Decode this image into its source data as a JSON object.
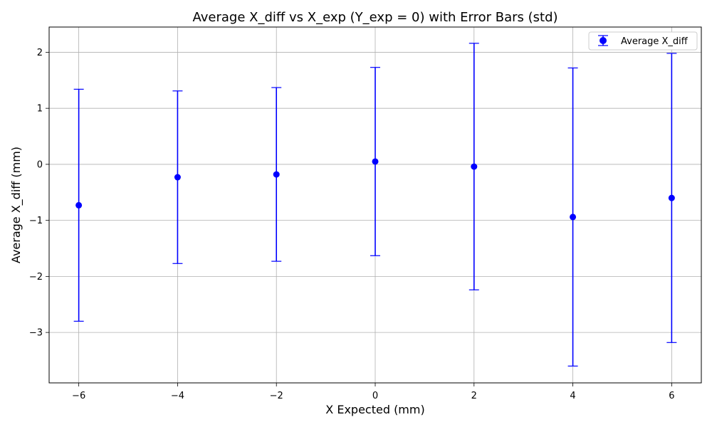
{
  "chart_data": {
    "type": "scatter",
    "title": "Average X_diff vs X_exp (Y_exp = 0) with Error Bars (std)",
    "xlabel": "X Expected (mm)",
    "ylabel": "Average X_diff (mm)",
    "xlim": [
      -6.6,
      6.6
    ],
    "ylim": [
      -3.9,
      2.45
    ],
    "xticks": [
      -6,
      -4,
      -2,
      0,
      2,
      4,
      6
    ],
    "xtick_labels": [
      "−6",
      "−4",
      "−2",
      "0",
      "2",
      "4",
      "6"
    ],
    "yticks": [
      2,
      1,
      0,
      -1,
      -2,
      -3
    ],
    "ytick_labels": [
      "2",
      "1",
      "0",
      "−1",
      "−2",
      "−3"
    ],
    "grid": true,
    "legend_position": "upper right",
    "color": "#0000ff",
    "series": [
      {
        "name": "Average X_diff",
        "x": [
          -6,
          -4,
          -2,
          0,
          2,
          4,
          6
        ],
        "y": [
          -0.73,
          -0.23,
          -0.18,
          0.05,
          -0.04,
          -0.94,
          -0.6
        ],
        "yerr": [
          2.07,
          1.54,
          1.55,
          1.68,
          2.2,
          2.66,
          2.58
        ]
      }
    ]
  }
}
